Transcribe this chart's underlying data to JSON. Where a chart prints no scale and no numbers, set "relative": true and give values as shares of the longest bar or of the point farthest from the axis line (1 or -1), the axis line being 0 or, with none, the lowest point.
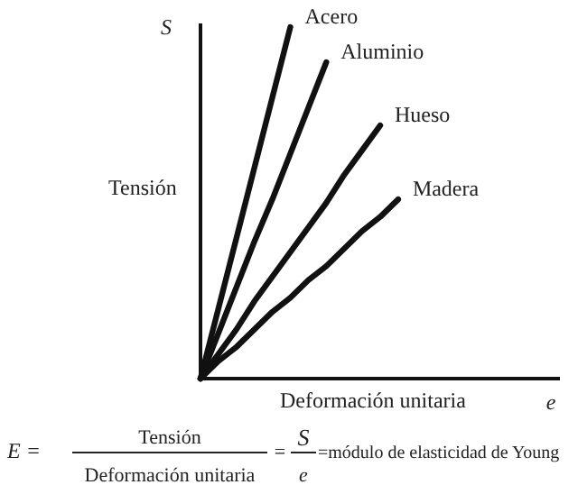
{
  "chart_data": {
    "type": "line",
    "relative": true,
    "xlabel": "Deformación unitaria",
    "ylabel": "Tensión",
    "legend": false,
    "marker": "none",
    "line_style": "solid",
    "categories": [
      null,
      null,
      null,
      null,
      null,
      null,
      null,
      null,
      null,
      null,
      null,
      null,
      null,
      null,
      null,
      null,
      null,
      null,
      null,
      null,
      null
    ],
    "series": [
      {
        "name": "Acero",
        "color": "#111111",
        "values": [
          0,
          0.2,
          0.4,
          0.6,
          0.8,
          1,
          null,
          null,
          null,
          null,
          null,
          null,
          null,
          null,
          null,
          null,
          null,
          null,
          null,
          null,
          null
        ]
      },
      {
        "name": "Aluminio",
        "color": "#111111",
        "values": [
          0,
          0.13,
          0.26,
          0.39,
          0.51,
          0.64,
          0.77,
          0.9,
          null,
          null,
          null,
          null,
          null,
          null,
          null,
          null,
          null,
          null,
          null,
          null,
          null
        ]
      },
      {
        "name": "Hueso",
        "color": "#111111",
        "values": [
          0,
          0.07,
          0.14,
          0.22,
          0.29,
          0.36,
          0.43,
          0.5,
          0.58,
          0.65,
          0.72,
          null,
          null,
          null,
          null,
          null,
          null,
          null,
          null,
          null,
          null
        ]
      },
      {
        "name": "Madera",
        "color": "#111111",
        "values": [
          0,
          0.05,
          0.09,
          0.14,
          0.19,
          0.23,
          0.28,
          0.32,
          0.37,
          0.42,
          0.46,
          0.51,
          null,
          null,
          null,
          null,
          null,
          null,
          null,
          null,
          null
        ]
      }
    ],
    "annotations": [
      "S",
      "e",
      "E =",
      "Tensión",
      "Deformación unitaria",
      "=",
      "S",
      "e",
      "=módulo de elasticidad de Young"
    ]
  }
}
